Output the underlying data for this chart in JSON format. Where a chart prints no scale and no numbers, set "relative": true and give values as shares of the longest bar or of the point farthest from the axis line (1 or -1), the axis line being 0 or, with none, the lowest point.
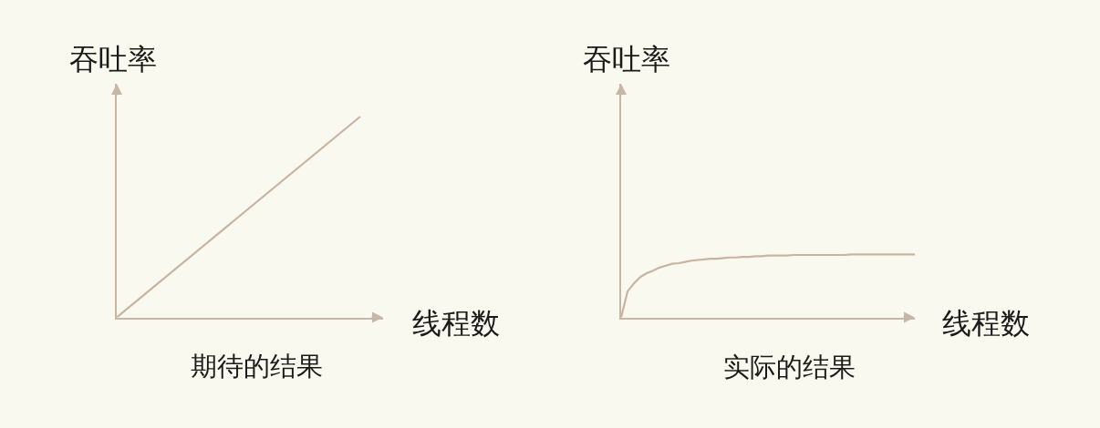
{
  "chart_data": [
    {
      "type": "line",
      "relative": true,
      "xlabel": "线程数",
      "ylabel": "吞吐率",
      "annotations": [
        "期待的结果"
      ],
      "categories": [
        null,
        null
      ],
      "series": [
        {
          "color": "#c8b4a2",
          "values": [
            0,
            1
          ]
        }
      ]
    },
    {
      "type": "line",
      "relative": true,
      "xlabel": "线程数",
      "ylabel": "吞吐率",
      "annotations": [
        "实际的结果"
      ],
      "categories": [
        null,
        null,
        null,
        null,
        null,
        null,
        null,
        null,
        null,
        null,
        null,
        null,
        null,
        null,
        null,
        null,
        null,
        null,
        null,
        null,
        null,
        null,
        null,
        null,
        null,
        null,
        null,
        null,
        null,
        null,
        null,
        null,
        null,
        null,
        null,
        null,
        null,
        null,
        null,
        null,
        null,
        null,
        null,
        null,
        null,
        null,
        null
      ],
      "series": [
        {
          "color": "#c8b4a2",
          "values": [
            0,
            0.41,
            0.54,
            0.64,
            0.7,
            0.74,
            0.79,
            0.82,
            0.85,
            0.86,
            0.88,
            0.9,
            0.91,
            0.92,
            0.93,
            0.93,
            0.94,
            0.95,
            0.95,
            0.96,
            0.96,
            0.97,
            0.97,
            0.98,
            0.98,
            0.98,
            0.98,
            0.99,
            0.99,
            0.99,
            0.99,
            0.99,
            0.99,
            0.99,
            0.99,
            0.99,
            1,
            1,
            1,
            1,
            1,
            1,
            1,
            1,
            1,
            1,
            1
          ]
        }
      ]
    }
  ]
}
